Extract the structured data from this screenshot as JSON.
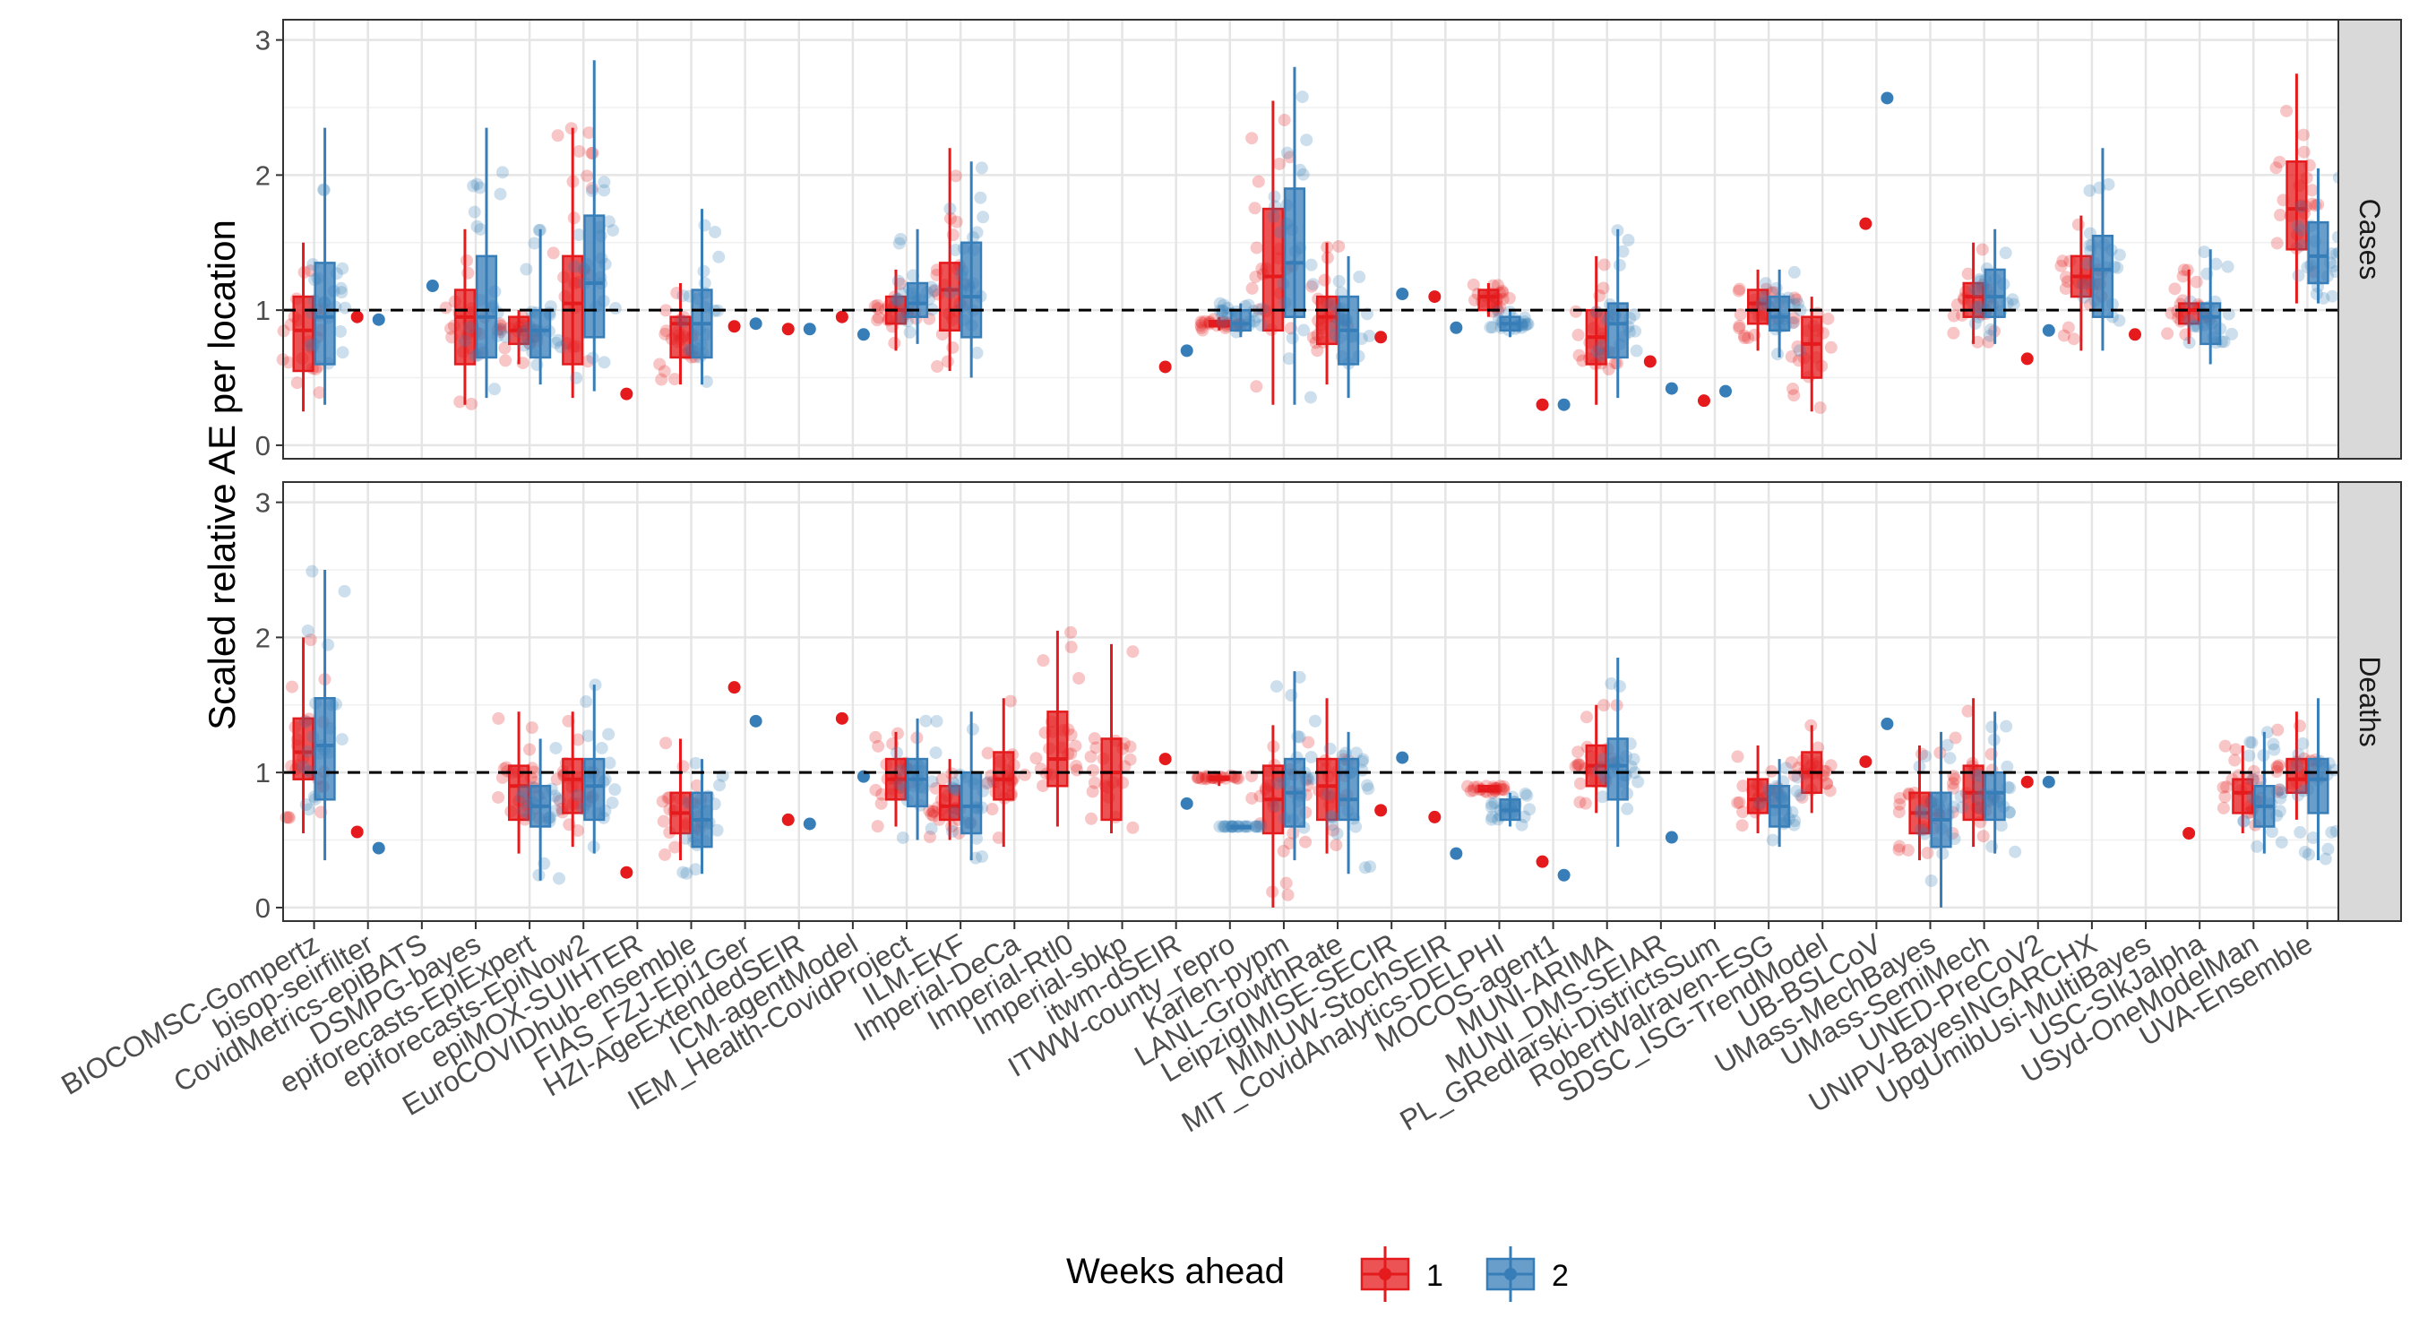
{
  "chart_data": {
    "type": "box",
    "ylabel": "Scaled relative AE per location",
    "ylim": [
      -0.1,
      3.15
    ],
    "yticks": [
      0,
      1,
      2,
      3
    ],
    "reference_line": 1,
    "legend": {
      "title": "Weeks ahead",
      "position": "bottom",
      "entries": [
        "1",
        "2"
      ]
    },
    "colors": {
      "1": "#e41a1c",
      "2": "#377eb8"
    },
    "facets": [
      "Cases",
      "Deaths"
    ],
    "categories": [
      "BIOCOMSC-Gompertz",
      "bisop-seirfilter",
      "CovidMetrics-epiBATS",
      "DSMPG-bayes",
      "epiforecasts-EpiExpert",
      "epiforecasts-EpiNow2",
      "epiMOX-SUIHTER",
      "EuroCOVIDhub-ensemble",
      "FIAS_FZJ-Epi1Ger",
      "HZI-AgeExtendedSEIR",
      "ICM-agentModel",
      "IEM_Health-CovidProject",
      "ILM-EKF",
      "Imperial-DeCa",
      "Imperial-Rtl0",
      "Imperial-sbkp",
      "itwm-dSEIR",
      "ITWW-county_repro",
      "Karlen-pypm",
      "LANL-GrowthRate",
      "LeipzigIMISE-SECIR",
      "MIMUW-StochSEIR",
      "MIT_CovidAnalytics-DELPHI",
      "MOCOS-agent1",
      "MUNI-ARIMA",
      "MUNI_DMS-SEIAR",
      "PL_GRedlarski-DistrictsSum",
      "RobertWalraven-ESG",
      "SDSC_ISG-TrendModel",
      "UB-BSLCoV",
      "UMass-MechBayes",
      "UMass-SemiMech",
      "UNED-PreCoV2",
      "UNIPV-BayesINGARCHX",
      "UpgUmibUsi-MultiBayes",
      "USC-SIkJalpha",
      "USyd-OneModelMan",
      "UVA-Ensemble"
    ],
    "series_note": "Each entry: [q1, median, q3, whisker_low, whisker_high] or [point] for single-location models; null = no forecasts",
    "Cases": {
      "1": [
        [
          0.55,
          0.85,
          1.1,
          0.25,
          1.5
        ],
        [
          0.95
        ],
        null,
        [
          0.6,
          0.95,
          1.15,
          0.3,
          1.6
        ],
        [
          0.75,
          0.85,
          0.95,
          0.6,
          1.0
        ],
        [
          0.6,
          1.05,
          1.4,
          0.35,
          2.35
        ],
        [
          0.38
        ],
        [
          0.65,
          0.9,
          0.95,
          0.45,
          1.2
        ],
        [
          0.88
        ],
        [
          0.86
        ],
        [
          0.95
        ],
        [
          0.9,
          1.0,
          1.1,
          0.7,
          1.3
        ],
        [
          0.85,
          1.15,
          1.35,
          0.55,
          2.2
        ],
        null,
        null,
        null,
        [
          0.58
        ],
        [
          0.88,
          0.9,
          0.92,
          0.85,
          0.95
        ],
        [
          0.85,
          1.25,
          1.75,
          0.3,
          2.55
        ],
        [
          0.75,
          0.95,
          1.1,
          0.45,
          1.5
        ],
        [
          0.8
        ],
        [
          1.1
        ],
        [
          1.0,
          1.1,
          1.15,
          0.95,
          1.2
        ],
        [
          0.3
        ],
        [
          0.6,
          0.8,
          1.0,
          0.3,
          1.4
        ],
        [
          0.62
        ],
        [
          0.33
        ],
        [
          0.9,
          1.05,
          1.15,
          0.7,
          1.3
        ],
        [
          0.5,
          0.75,
          0.95,
          0.25,
          1.1
        ],
        [
          1.64
        ],
        null,
        [
          0.95,
          1.1,
          1.2,
          0.75,
          1.5
        ],
        [
          0.64
        ],
        [
          1.1,
          1.25,
          1.4,
          0.7,
          1.7
        ],
        [
          0.82
        ],
        [
          0.9,
          1.0,
          1.05,
          0.75,
          1.3
        ],
        null,
        [
          1.45,
          1.75,
          2.1,
          1.05,
          2.75
        ]
      ],
      "2": [
        [
          0.6,
          0.95,
          1.35,
          0.3,
          2.35
        ],
        [
          0.93
        ],
        [
          1.18
        ],
        [
          0.65,
          0.95,
          1.4,
          0.35,
          2.35
        ],
        [
          0.65,
          0.85,
          1.0,
          0.45,
          1.6
        ],
        [
          0.8,
          1.2,
          1.7,
          0.4,
          2.85
        ],
        null,
        [
          0.65,
          0.9,
          1.15,
          0.45,
          1.75
        ],
        [
          0.9
        ],
        [
          0.86
        ],
        [
          0.82
        ],
        [
          0.95,
          1.05,
          1.2,
          0.75,
          1.6
        ],
        [
          0.8,
          1.1,
          1.5,
          0.5,
          2.1
        ],
        null,
        null,
        null,
        [
          0.7
        ],
        [
          0.85,
          0.9,
          1.0,
          0.8,
          1.05
        ],
        [
          0.95,
          1.35,
          1.9,
          0.3,
          2.8
        ],
        [
          0.6,
          0.85,
          1.1,
          0.35,
          1.4
        ],
        [
          1.12
        ],
        [
          0.87
        ],
        [
          0.85,
          0.9,
          0.95,
          0.8,
          1.0
        ],
        [
          0.3
        ],
        [
          0.65,
          0.9,
          1.05,
          0.35,
          1.6
        ],
        [
          0.42
        ],
        [
          0.4
        ],
        [
          0.85,
          0.95,
          1.1,
          0.65,
          1.3
        ],
        null,
        [
          2.57
        ],
        null,
        [
          0.95,
          1.1,
          1.3,
          0.75,
          1.6
        ],
        [
          0.85
        ],
        [
          0.95,
          1.3,
          1.55,
          0.7,
          2.2
        ],
        null,
        [
          0.75,
          0.95,
          1.05,
          0.6,
          1.45
        ],
        null,
        [
          1.2,
          1.4,
          1.65,
          1.05,
          2.05
        ]
      ]
    },
    "Deaths": {
      "1": [
        [
          0.95,
          1.15,
          1.4,
          0.55,
          2.0
        ],
        [
          0.56
        ],
        null,
        null,
        [
          0.65,
          0.9,
          1.05,
          0.4,
          1.45
        ],
        [
          0.7,
          0.95,
          1.1,
          0.45,
          1.45
        ],
        [
          0.26
        ],
        [
          0.55,
          0.7,
          0.85,
          0.35,
          1.25
        ],
        [
          1.63
        ],
        [
          0.65
        ],
        [
          1.4
        ],
        [
          0.8,
          0.95,
          1.1,
          0.6,
          1.3
        ],
        [
          0.65,
          0.75,
          0.9,
          0.5,
          1.1
        ],
        [
          0.8,
          0.95,
          1.15,
          0.45,
          1.55
        ],
        [
          0.9,
          1.1,
          1.45,
          0.6,
          2.05
        ],
        [
          0.65,
          1.0,
          1.25,
          0.55,
          1.95
        ],
        [
          1.1
        ],
        [
          0.95,
          0.95,
          0.97,
          0.9,
          1.0
        ],
        [
          0.55,
          0.8,
          1.05,
          0.0,
          1.35
        ],
        [
          0.65,
          0.9,
          1.1,
          0.4,
          1.55
        ],
        [
          0.72
        ],
        [
          0.67
        ],
        [
          0.86,
          0.87,
          0.9,
          0.85,
          0.9
        ],
        [
          0.34
        ],
        [
          0.9,
          1.05,
          1.2,
          0.7,
          1.5
        ],
        null,
        null,
        [
          0.7,
          0.8,
          0.95,
          0.55,
          1.2
        ],
        [
          0.85,
          1.0,
          1.15,
          0.7,
          1.35
        ],
        [
          1.08
        ],
        [
          0.55,
          0.7,
          0.85,
          0.35,
          1.2
        ],
        [
          0.65,
          0.85,
          1.05,
          0.45,
          1.55
        ],
        [
          0.93
        ],
        null,
        null,
        [
          0.55
        ],
        [
          0.7,
          0.85,
          0.95,
          0.55,
          1.2
        ],
        [
          0.85,
          0.95,
          1.1,
          0.65,
          1.45
        ]
      ],
      "2": [
        [
          0.8,
          1.2,
          1.55,
          0.35,
          2.5
        ],
        [
          0.44
        ],
        null,
        null,
        [
          0.6,
          0.75,
          0.9,
          0.2,
          1.25
        ],
        [
          0.65,
          0.9,
          1.1,
          0.4,
          1.65
        ],
        null,
        [
          0.45,
          0.65,
          0.85,
          0.25,
          1.1
        ],
        [
          1.38
        ],
        [
          0.62
        ],
        [
          0.97
        ],
        [
          0.75,
          0.95,
          1.1,
          0.5,
          1.4
        ],
        [
          0.55,
          0.75,
          1.0,
          0.35,
          1.45
        ],
        null,
        null,
        null,
        [
          0.77
        ],
        [
          0.6,
          0.6,
          0.6,
          0.6,
          0.6
        ],
        [
          0.6,
          0.85,
          1.1,
          0.35,
          1.75
        ],
        [
          0.65,
          0.8,
          1.1,
          0.25,
          1.3
        ],
        [
          1.11
        ],
        [
          0.4
        ],
        [
          0.65,
          0.72,
          0.8,
          0.6,
          0.85
        ],
        [
          0.24
        ],
        [
          0.8,
          1.05,
          1.25,
          0.45,
          1.85
        ],
        [
          0.52
        ],
        null,
        [
          0.6,
          0.75,
          0.9,
          0.45,
          1.1
        ],
        null,
        [
          1.36
        ],
        [
          0.45,
          0.65,
          0.85,
          0.0,
          1.3
        ],
        [
          0.65,
          0.85,
          1.0,
          0.4,
          1.45
        ],
        [
          0.93
        ],
        null,
        null,
        null,
        [
          0.6,
          0.75,
          0.9,
          0.4,
          1.3
        ],
        [
          0.7,
          0.95,
          1.1,
          0.35,
          1.55
        ]
      ]
    }
  }
}
